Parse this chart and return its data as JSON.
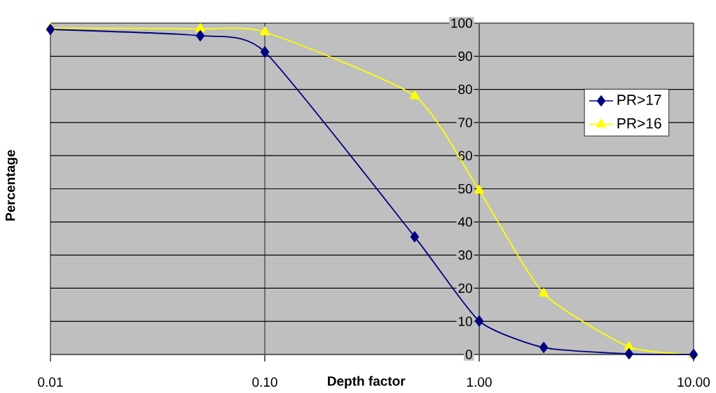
{
  "chart_data": {
    "type": "line",
    "xlabel": "Depth factor",
    "ylabel": "Percentage",
    "x": [
      0.01,
      0.05,
      0.1,
      0.5,
      1,
      2,
      5,
      10
    ],
    "series": [
      {
        "name": "PR>17",
        "color": "#000080",
        "marker": "diamond",
        "values": [
          98.1,
          96.2,
          91.3,
          35.5,
          10.1,
          2.1,
          0.2,
          0
        ]
      },
      {
        "name": "PR>16",
        "color": "#ffff00",
        "marker": "triangle",
        "values": [
          98.5,
          98.3,
          97.3,
          78,
          49.5,
          18.4,
          2.3,
          0
        ]
      }
    ],
    "log": "x",
    "xlim": [
      0.01,
      10
    ],
    "ylim": [
      0,
      100
    ],
    "xticks": [
      {
        "value": 0.01,
        "label": "0.01"
      },
      {
        "value": 0.1,
        "label": "0.10"
      },
      {
        "value": 1,
        "label": "1.00"
      },
      {
        "value": 10,
        "label": "10.00"
      }
    ],
    "yticks": [
      0,
      10,
      20,
      30,
      40,
      50,
      60,
      70,
      80,
      90,
      100
    ],
    "grid": true,
    "legend": "right",
    "line_style": "solid"
  }
}
